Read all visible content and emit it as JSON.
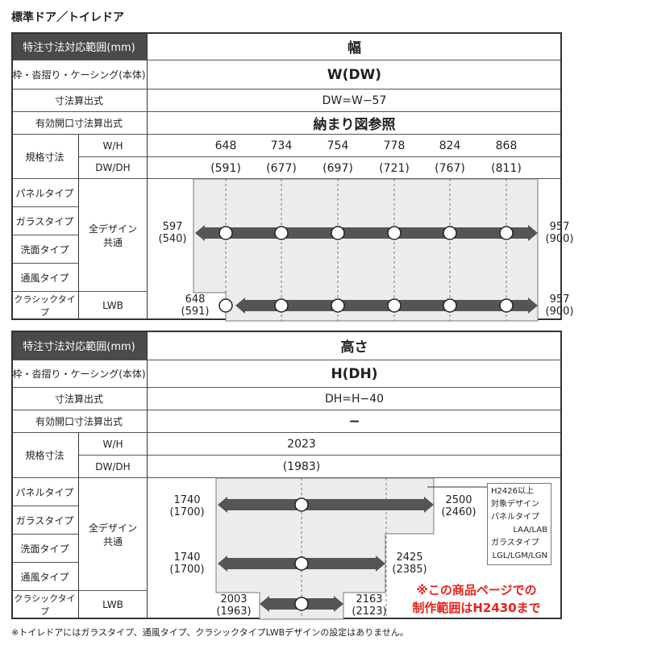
{
  "title": "標準ドア／トイレドア",
  "tables": [
    {
      "header": "特注寸法対応範囲(mm)",
      "dimension": "幅",
      "frame_label": "枠・沓摺り・ケーシング(本体)",
      "frame_value": "W(DW)",
      "formula_label": "寸法算出式",
      "formula_value": "DW=W−57",
      "opening_label": "有効開口寸法算出式",
      "opening_value": "納まり図参照",
      "std_label": "規格寸法",
      "wh_label": "W/H",
      "dwdh_label": "DW/DH",
      "wh_values": [
        "648",
        "734",
        "754",
        "778",
        "824",
        "868"
      ],
      "dwdh_values": [
        "(591)",
        "(677)",
        "(697)",
        "(721)",
        "(767)",
        "(811)"
      ],
      "types": [
        "パネルタイプ",
        "ガラスタイプ",
        "洗面タイプ",
        "通風タイプ",
        "クラシックタイプ"
      ],
      "design_all": "全デザイン\n共通",
      "design_lwb": "LWB",
      "range_all": {
        "min": "597",
        "min_d": "(540)",
        "max": "957",
        "max_d": "(900)"
      },
      "range_lwb": {
        "min": "648",
        "min_d": "(591)",
        "max": "957",
        "max_d": "(900)"
      }
    },
    {
      "header": "特注寸法対応範囲(mm)",
      "dimension": "高さ",
      "frame_label": "枠・沓摺り・ケーシング(本体)",
      "frame_value": "H(DH)",
      "formula_label": "寸法算出式",
      "formula_value": "DH=H−40",
      "opening_label": "有効開口寸法算出式",
      "opening_value": "−",
      "std_label": "規格寸法",
      "wh_label": "W/H",
      "dwdh_label": "DW/DH",
      "wh_values": [
        "2023"
      ],
      "dwdh_values": [
        "(1983)"
      ],
      "types": [
        "パネルタイプ",
        "ガラスタイプ",
        "洗面タイプ",
        "通風タイプ",
        "クラシックタイプ"
      ],
      "design_all": "全デザイン\n共通",
      "design_lwb": "LWB",
      "range_special": {
        "min": "1740",
        "min_d": "(1700)",
        "max": "2500",
        "max_d": "(2460)"
      },
      "range_all": {
        "min": "1740",
        "min_d": "(1700)",
        "max": "2425",
        "max_d": "(2385)"
      },
      "range_lwb": {
        "min": "2003",
        "min_d": "(1963)",
        "max": "2163",
        "max_d": "(2123)"
      },
      "callout": [
        "H2426以上",
        "対象デザイン",
        "パネルタイプ",
        "LAA/LAB",
        "ガラスタイプ",
        "LGL/LGM/LGN"
      ],
      "note_red": [
        "※この商品ページでの",
        "制作範囲はH2430まで"
      ],
      "note_red_color": "#e8211d"
    }
  ],
  "footnote": "※トイレドアにはガラスタイプ、通風タイプ、クラシックタイプLWBデザインの設定はありません。"
}
